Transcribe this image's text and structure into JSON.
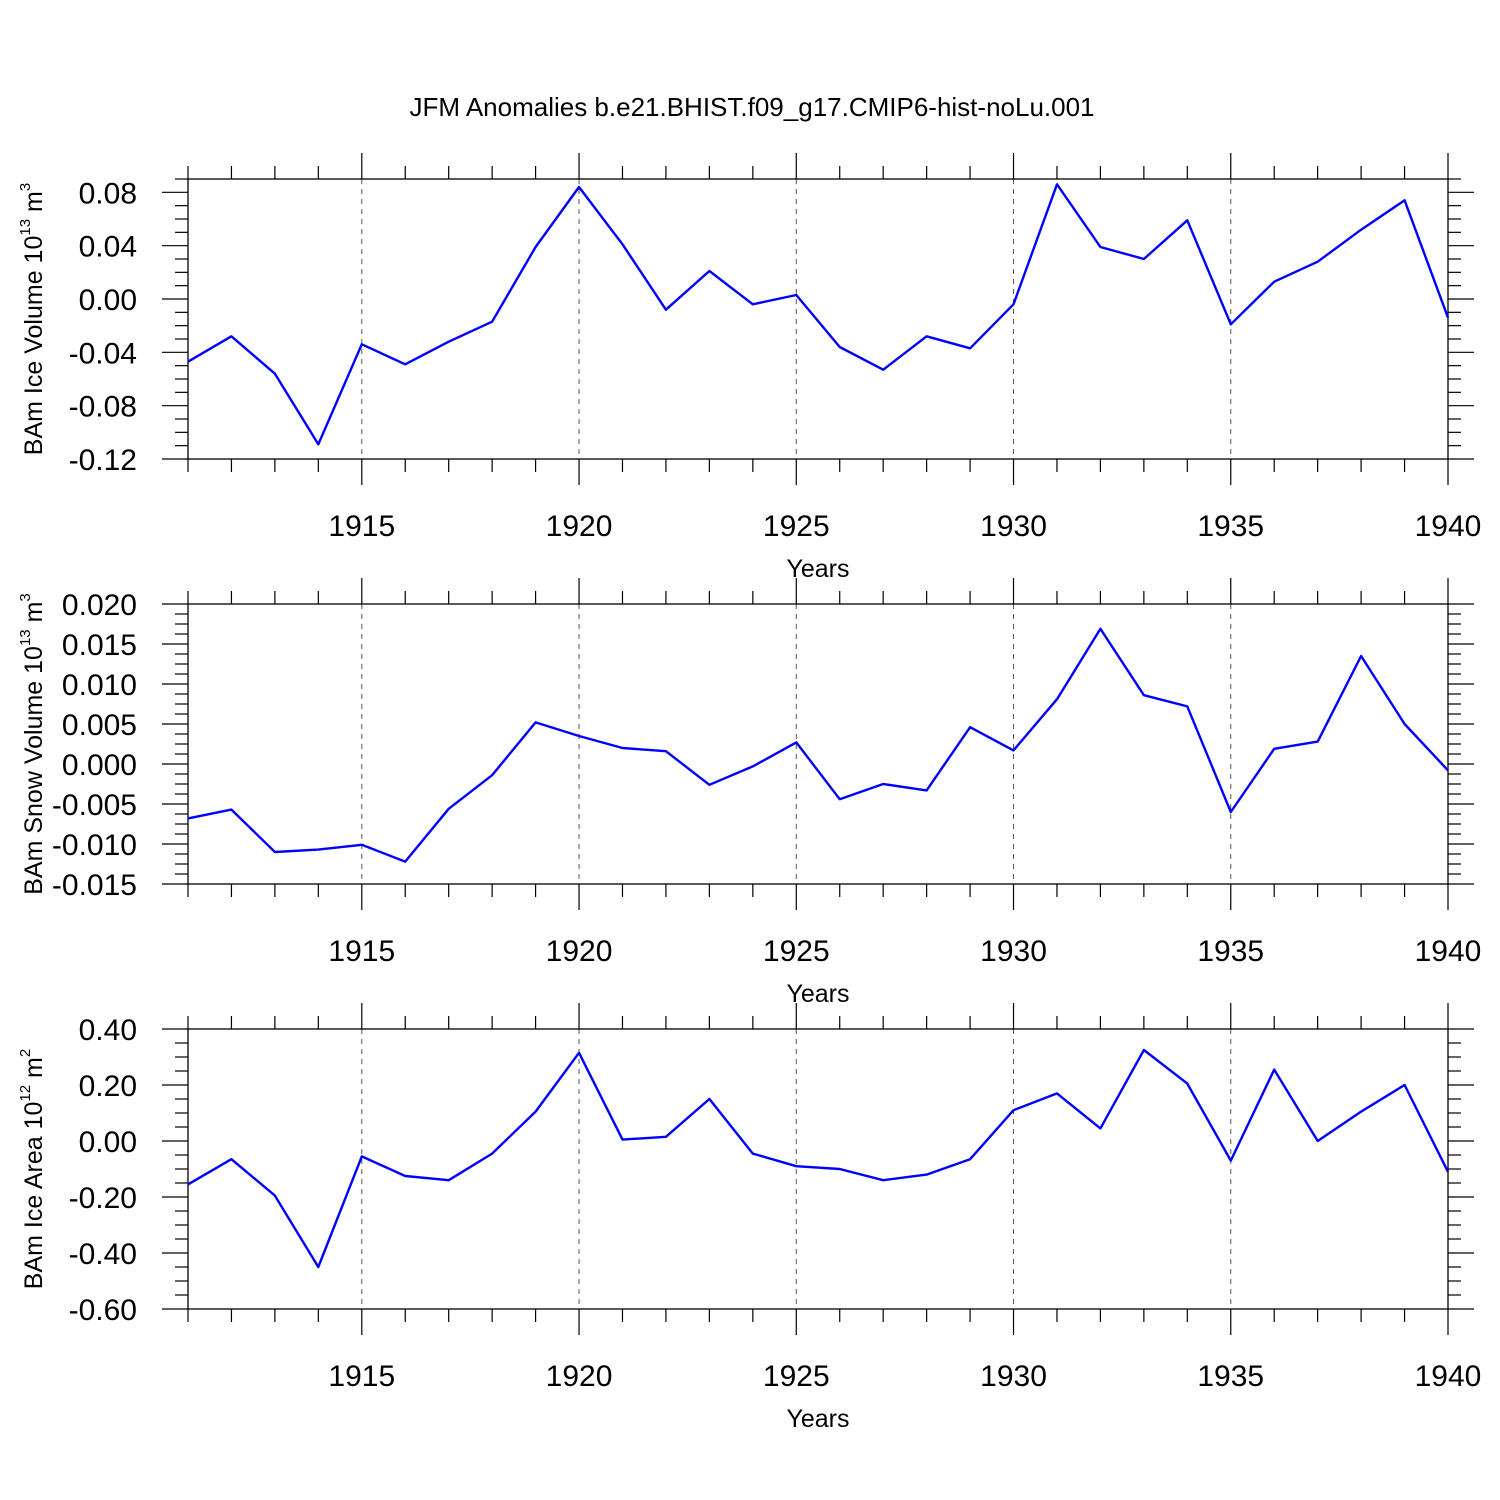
{
  "title": "JFM Anomalies b.e21.BHIST.f09_g17.CMIP6-hist-noLu.001",
  "colors": {
    "line": "#0000ff",
    "axis": "#000000",
    "grid": "#555555"
  },
  "chart_data": [
    {
      "type": "line",
      "xlabel": "Years",
      "ylabel_text": "BAm Ice Volume 10",
      "ylabel_exp": "13",
      "ylabel_unit": " m",
      "ylabel_unit_exp": "3",
      "xlim": [
        1911,
        1940
      ],
      "ylim": [
        -0.12,
        0.09
      ],
      "yticks": [
        -0.12,
        -0.08,
        -0.04,
        0.0,
        0.04,
        0.08
      ],
      "ytick_labels": [
        "-0.12",
        "-0.08",
        "-0.04",
        "0.00",
        "0.04",
        "0.08"
      ],
      "xticks": [
        1915,
        1920,
        1925,
        1930,
        1935,
        1940
      ],
      "xtick_labels": [
        "1915",
        "1920",
        "1925",
        "1930",
        "1935",
        "1940"
      ],
      "grid": "vertical dashed at major ticks",
      "x": [
        1911,
        1912,
        1913,
        1914,
        1915,
        1916,
        1917,
        1918,
        1919,
        1920,
        1921,
        1922,
        1923,
        1924,
        1925,
        1926,
        1927,
        1928,
        1929,
        1930,
        1931,
        1932,
        1933,
        1934,
        1935,
        1936,
        1937,
        1938,
        1939,
        1940
      ],
      "series": [
        {
          "values": [
            -0.047,
            -0.028,
            -0.056,
            -0.109,
            -0.034,
            -0.049,
            -0.032,
            -0.017,
            0.039,
            0.084,
            0.041,
            -0.008,
            0.021,
            -0.004,
            0.003,
            -0.036,
            -0.053,
            -0.028,
            -0.037,
            -0.004,
            0.086,
            0.039,
            0.03,
            0.059,
            -0.019,
            0.013,
            0.028,
            0.052,
            0.074,
            -0.014
          ]
        }
      ]
    },
    {
      "type": "line",
      "xlabel": "Years",
      "ylabel_text": "BAm Snow Volume 10",
      "ylabel_exp": "13",
      "ylabel_unit": " m",
      "ylabel_unit_exp": "3",
      "xlim": [
        1911,
        1940
      ],
      "ylim": [
        -0.015,
        0.02
      ],
      "yticks": [
        -0.015,
        -0.01,
        -0.005,
        0.0,
        0.005,
        0.01,
        0.015,
        0.02
      ],
      "ytick_labels": [
        "-0.015",
        "-0.010",
        "-0.005",
        "0.000",
        "0.005",
        "0.010",
        "0.015",
        "0.020"
      ],
      "xticks": [
        1915,
        1920,
        1925,
        1930,
        1935,
        1940
      ],
      "xtick_labels": [
        "1915",
        "1920",
        "1925",
        "1930",
        "1935",
        "1940"
      ],
      "grid": "vertical dashed at major ticks",
      "x": [
        1911,
        1912,
        1913,
        1914,
        1915,
        1916,
        1917,
        1918,
        1919,
        1920,
        1921,
        1922,
        1923,
        1924,
        1925,
        1926,
        1927,
        1928,
        1929,
        1930,
        1931,
        1932,
        1933,
        1934,
        1935,
        1936,
        1937,
        1938,
        1939,
        1940
      ],
      "series": [
        {
          "values": [
            -0.0068,
            -0.0057,
            -0.011,
            -0.0107,
            -0.0101,
            -0.0122,
            -0.0056,
            -0.0014,
            0.0052,
            0.0035,
            0.002,
            0.0016,
            -0.0026,
            -0.0003,
            0.0027,
            -0.0044,
            -0.0025,
            -0.0033,
            0.0046,
            0.0017,
            0.0081,
            0.0169,
            0.0086,
            0.0072,
            -0.006,
            0.0019,
            0.0028,
            0.0135,
            0.005,
            -0.0008
          ]
        }
      ]
    },
    {
      "type": "line",
      "xlabel": "Years",
      "ylabel_text": "BAm Ice Area 10",
      "ylabel_exp": "12",
      "ylabel_unit": " m",
      "ylabel_unit_exp": "2",
      "xlim": [
        1911,
        1940
      ],
      "ylim": [
        -0.6,
        0.4
      ],
      "yticks": [
        -0.6,
        -0.4,
        -0.2,
        0.0,
        0.2,
        0.4
      ],
      "ytick_labels": [
        "-0.60",
        "-0.40",
        "-0.20",
        "0.00",
        "0.20",
        "0.40"
      ],
      "xticks": [
        1915,
        1920,
        1925,
        1930,
        1935,
        1940
      ],
      "xtick_labels": [
        "1915",
        "1920",
        "1925",
        "1930",
        "1935",
        "1940"
      ],
      "grid": "vertical dashed at major ticks",
      "x": [
        1911,
        1912,
        1913,
        1914,
        1915,
        1916,
        1917,
        1918,
        1919,
        1920,
        1921,
        1922,
        1923,
        1924,
        1925,
        1926,
        1927,
        1928,
        1929,
        1930,
        1931,
        1932,
        1933,
        1934,
        1935,
        1936,
        1937,
        1938,
        1939,
        1940
      ],
      "series": [
        {
          "values": [
            -0.155,
            -0.065,
            -0.195,
            -0.45,
            -0.055,
            -0.125,
            -0.14,
            -0.045,
            0.105,
            0.315,
            0.005,
            0.015,
            0.15,
            -0.045,
            -0.09,
            -0.1,
            -0.14,
            -0.12,
            -0.065,
            0.11,
            0.17,
            0.045,
            0.325,
            0.205,
            -0.07,
            0.255,
            0.0,
            0.105,
            0.2,
            -0.11
          ]
        }
      ]
    }
  ]
}
